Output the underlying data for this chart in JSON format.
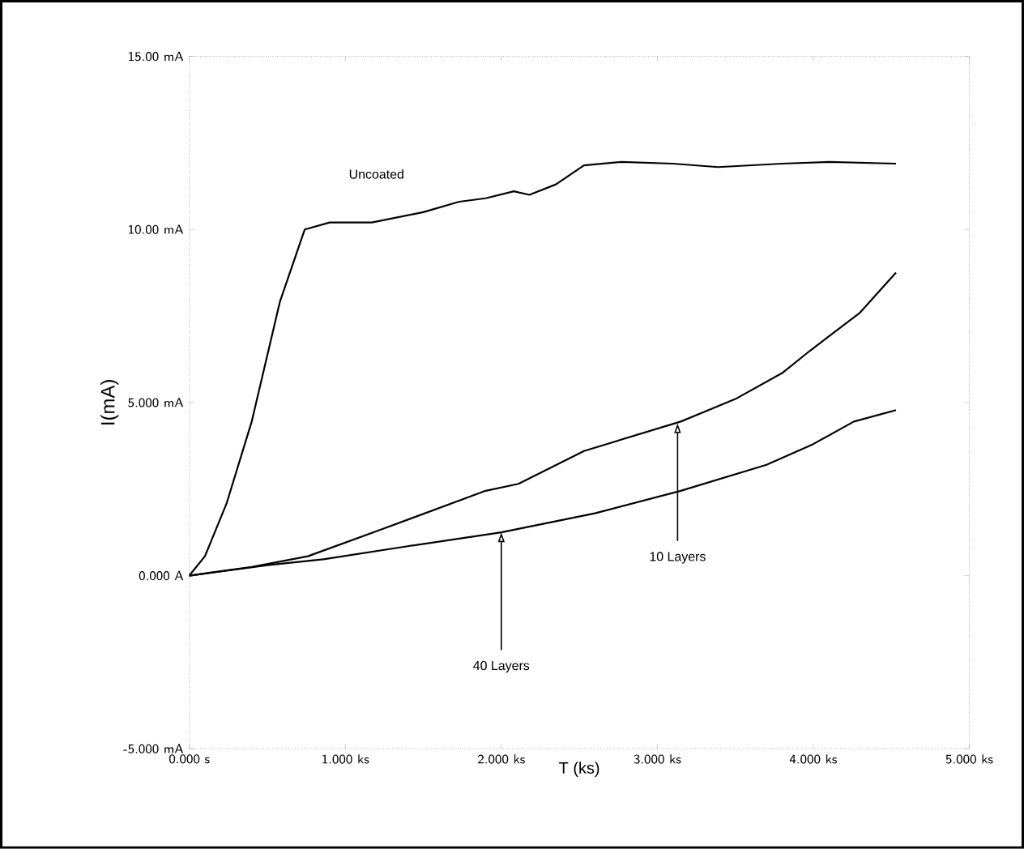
{
  "chart_data": {
    "type": "line",
    "xlabel": "T (ks)",
    "ylabel": "I(mA)",
    "xlim": [
      0,
      5
    ],
    "ylim": [
      -5,
      15
    ],
    "xticks": [
      {
        "value": 0,
        "label": "0.000 s"
      },
      {
        "value": 1,
        "label": "1.000 ks"
      },
      {
        "value": 2,
        "label": "2.000 ks"
      },
      {
        "value": 3,
        "label": "3.000 ks"
      },
      {
        "value": 4,
        "label": "4.000 ks"
      },
      {
        "value": 5,
        "label": "5.000 ks"
      }
    ],
    "yticks": [
      {
        "value": -5,
        "label": "-5.000 mA"
      },
      {
        "value": 0,
        "label": "0.000 A"
      },
      {
        "value": 5,
        "label": "5.000 mA"
      },
      {
        "value": 10,
        "label": "10.00 mA"
      },
      {
        "value": 15,
        "label": "15.00 mA"
      }
    ],
    "grid": false,
    "marker": "none",
    "line_style": "solid",
    "series": [
      {
        "name": "Uncoated",
        "color": "#000000",
        "x": [
          0,
          0.1,
          0.24,
          0.4,
          0.58,
          0.74,
          0.9,
          1.17,
          1.5,
          1.73,
          1.9,
          2.08,
          2.18,
          2.35,
          2.53,
          2.77,
          3.1,
          3.39,
          3.8,
          4.1,
          4.53
        ],
        "values": [
          0,
          0.56,
          2.1,
          4.45,
          7.9,
          10.0,
          10.2,
          10.2,
          10.5,
          10.8,
          10.9,
          11.1,
          11.0,
          11.3,
          11.85,
          11.95,
          11.9,
          11.8,
          11.9,
          11.95,
          11.9
        ]
      },
      {
        "color": "#000000",
        "x": [
          0,
          0.4,
          0.76,
          1.21,
          1.9,
          2.11,
          2.53,
          3.15,
          3.5,
          3.8,
          3.98,
          4.3,
          4.53
        ],
        "values": [
          0,
          0.25,
          0.56,
          1.3,
          2.45,
          2.65,
          3.6,
          4.45,
          5.1,
          5.85,
          6.5,
          7.6,
          8.75
        ]
      },
      {
        "color": "#000000",
        "x": [
          0,
          0.17,
          0.5,
          0.86,
          1.4,
          2.0,
          2.6,
          3.15,
          3.7,
          4.0,
          4.26,
          4.53
        ],
        "values": [
          0,
          0.1,
          0.3,
          0.47,
          0.85,
          1.25,
          1.8,
          2.45,
          3.2,
          3.8,
          4.45,
          4.78
        ]
      }
    ],
    "annotations": [
      {
        "text": "40 Layers",
        "x": 2.0,
        "y": 1.25
      },
      {
        "text": "10 Layers",
        "x": 3.13,
        "y": 4.4
      }
    ]
  }
}
